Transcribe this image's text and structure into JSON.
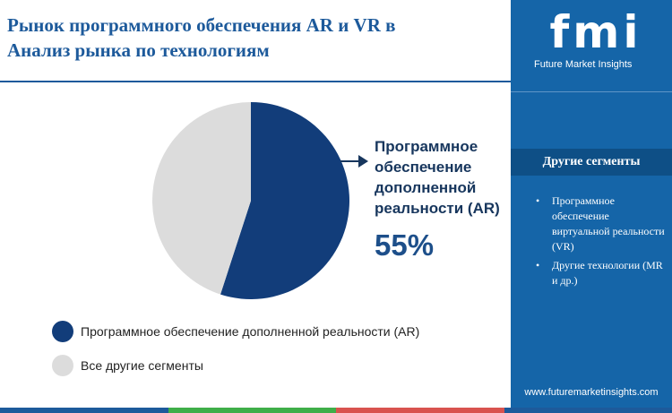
{
  "header": {
    "title_line1": "Рынок программного обеспечения AR и VR в",
    "title_line2": "Анализ рынка по технологиям"
  },
  "chart_data": {
    "type": "pie",
    "slices": [
      {
        "name": "Программное обеспечение дополненной реальности (AR)",
        "value": 55,
        "color": "#123d7a"
      },
      {
        "name": "Все другие сегменты",
        "value": 45,
        "color": "#dcdcdc"
      }
    ],
    "highlight": {
      "label": "Программное обеспечение дополненной реальности (AR)",
      "value_text": "55%"
    }
  },
  "legend": {
    "items": [
      {
        "label": "Программное обеспечение дополненной реальности (AR)",
        "color": "#123d7a"
      },
      {
        "label": "Все другие сегменты",
        "color": "#dcdcdc"
      }
    ]
  },
  "brand": {
    "logo_text": "fmi",
    "subtitle": "Future Market Insights",
    "url": "www.futuremarketinsights.com",
    "sidebar_color": "#1565a8"
  },
  "sidebar": {
    "header": "Другие сегменты",
    "items": [
      "Программное обеспечение виртуальной реальности (VR)",
      "Другие технологии (MR и др.)"
    ]
  },
  "footer_colors": [
    "#1d5a9b",
    "#3fae49",
    "#d9534f",
    "#1d5a9b"
  ]
}
